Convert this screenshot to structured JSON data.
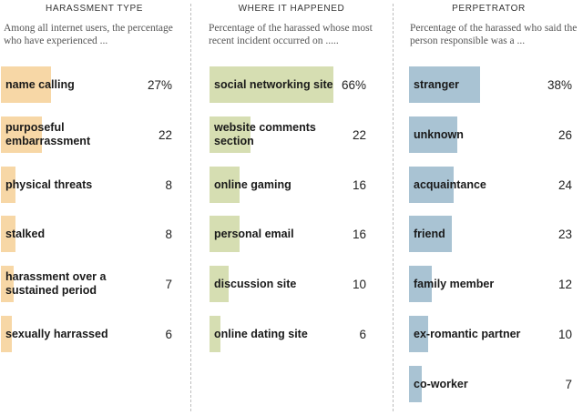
{
  "colors": {
    "harassment_type": "#f7d7a6",
    "where_it_happened": "#d6deb2",
    "perpetrator": "#a9c3d3"
  },
  "chart_data": [
    {
      "type": "bar",
      "title": "HARASSMENT TYPE",
      "subtitle": "Among all internet users, the percentage who have experienced ...",
      "categories": [
        "name calling",
        "purposeful embarrassment",
        "physical threats",
        "stalked",
        "harassment over a sustained period",
        "sexually harrassed"
      ],
      "value_labels": [
        "27%",
        "22",
        "8",
        "8",
        "7",
        "6"
      ],
      "values": [
        27,
        22,
        8,
        8,
        7,
        6
      ],
      "unit": "%"
    },
    {
      "type": "bar",
      "title": "WHERE IT HAPPENED",
      "subtitle": "Percentage of the harassed whose most recent incident occurred on .....",
      "categories": [
        "social networking site",
        "website comments section",
        "online gaming",
        "personal email",
        "discussion site",
        "online dating site"
      ],
      "value_labels": [
        "66%",
        "22",
        "16",
        "16",
        "10",
        "6"
      ],
      "values": [
        66,
        22,
        16,
        16,
        10,
        6
      ],
      "unit": "%"
    },
    {
      "type": "bar",
      "title": "PERPETRATOR",
      "subtitle": "Percentage of the harassed who said the person responsible was a ...",
      "categories": [
        "stranger",
        "unknown",
        "acquaintance",
        "friend",
        "family member",
        "ex-romantic partner",
        "co-worker"
      ],
      "value_labels": [
        "38%",
        "26",
        "24",
        "23",
        "12",
        "10",
        "7"
      ],
      "values": [
        38,
        26,
        24,
        23,
        12,
        10,
        7
      ],
      "unit": "%"
    }
  ]
}
